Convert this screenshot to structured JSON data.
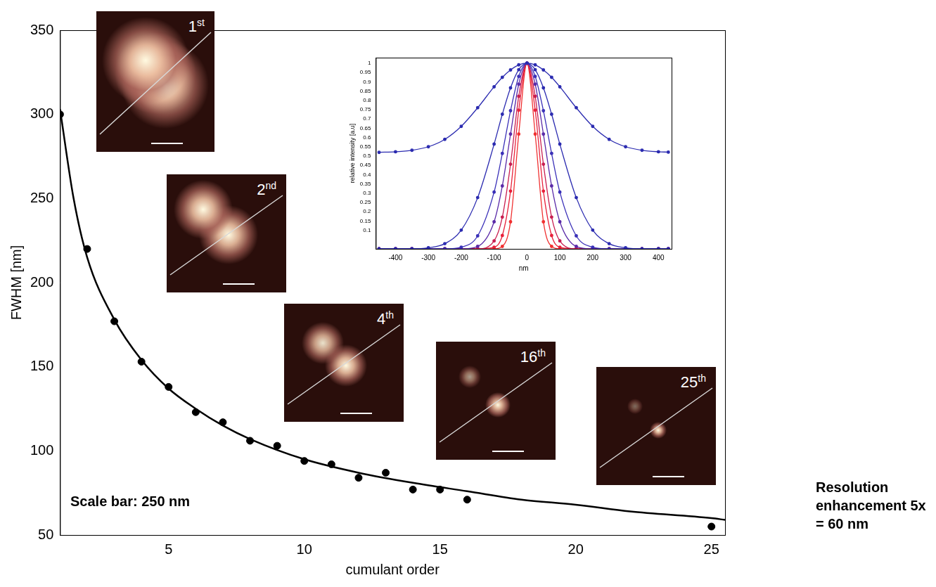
{
  "chart_data": [
    {
      "type": "scatter",
      "x_label": "cumulant order",
      "y_label": "FWHM [nm]",
      "xlim": [
        1,
        25.5
      ],
      "ylim": [
        50,
        350
      ],
      "xticks": [
        5,
        10,
        15,
        20,
        25
      ],
      "yticks": [
        50,
        100,
        150,
        200,
        250,
        300,
        350
      ],
      "grid": false,
      "series": [
        {
          "type": "scatter",
          "color": "#000000",
          "marker": "circle",
          "x": [
            1,
            2,
            3,
            4,
            5,
            6,
            7,
            8,
            9,
            10,
            11,
            12,
            13,
            14,
            15,
            16,
            25
          ],
          "values": [
            300,
            220,
            177,
            153,
            138,
            123,
            117,
            106,
            103,
            94,
            92,
            84,
            87,
            77,
            77,
            71,
            55
          ]
        },
        {
          "type": "line",
          "color": "#000000",
          "line_style": "solid",
          "x": [
            1,
            1.5,
            2,
            3,
            4,
            5,
            6,
            7,
            8,
            10,
            12,
            14,
            16,
            18,
            20,
            22,
            25,
            25.5
          ],
          "values": [
            303,
            250,
            215,
            178,
            154,
            137,
            125,
            115,
            107,
            95,
            87,
            81,
            76,
            71,
            68,
            64,
            60,
            59
          ]
        }
      ],
      "annotations": [
        "Scale bar: 250 nm",
        "Resolution enhancement 5x = 60 nm"
      ],
      "insets": [
        "1st",
        "2nd",
        "4th",
        "16th",
        "25th"
      ]
    },
    {
      "type": "line",
      "x_label": "nm",
      "y_label": "relative intensity [a.u]",
      "x": [
        -450,
        -400,
        -350,
        -300,
        -250,
        -200,
        -150,
        -100,
        -75,
        -50,
        -25,
        0,
        25,
        50,
        75,
        100,
        150,
        200,
        250,
        300,
        350,
        400,
        430
      ],
      "xlim": [
        -460,
        440
      ],
      "ylim": [
        0,
        1.03
      ],
      "xticks": [
        -400,
        -300,
        -200,
        -100,
        0,
        100,
        200,
        300,
        400
      ],
      "yticks": [
        0.1,
        0.15,
        0.2,
        0.25,
        0.3,
        0.35,
        0.4,
        0.45,
        0.5,
        0.55,
        0.6,
        0.65,
        0.7,
        0.75,
        0.8,
        0.85,
        0.9,
        0.95,
        1
      ],
      "grid": false,
      "series": [
        {
          "color": "#2b2bb0",
          "marker": "circle",
          "line_style": "solid",
          "values": [
            0.52,
            0.523,
            0.531,
            0.55,
            0.59,
            0.66,
            0.76,
            0.873,
            0.924,
            0.964,
            0.991,
            1,
            0.991,
            0.964,
            0.924,
            0.873,
            0.76,
            0.66,
            0.59,
            0.55,
            0.531,
            0.523,
            0.521
          ]
        },
        {
          "color": "#2b2bb0",
          "marker": "circle",
          "line_style": "solid",
          "values": [
            0,
            0,
            0,
            0.006,
            0.028,
            0.101,
            0.276,
            0.564,
            0.725,
            0.867,
            0.965,
            1,
            0.965,
            0.867,
            0.725,
            0.564,
            0.276,
            0.101,
            0.028,
            0.006,
            0,
            0,
            0
          ]
        },
        {
          "color": "#3a30b8",
          "marker": "circle",
          "line_style": "solid",
          "values": [
            0,
            0,
            0,
            0,
            0,
            0.009,
            0.07,
            0.306,
            0.514,
            0.744,
            0.929,
            1,
            0.929,
            0.744,
            0.514,
            0.306,
            0.07,
            0.009,
            0,
            0,
            0,
            0,
            0
          ]
        },
        {
          "color": "#5a2aa8",
          "marker": "circle",
          "line_style": "solid",
          "values": [
            0,
            0,
            0,
            0,
            0,
            0,
            0.013,
            0.146,
            0.339,
            0.618,
            0.887,
            1,
            0.887,
            0.618,
            0.339,
            0.146,
            0.013,
            0,
            0,
            0,
            0,
            0,
            0
          ]
        },
        {
          "color": "#c81e50",
          "marker": "circle",
          "line_style": "solid",
          "values": [
            0,
            0,
            0,
            0,
            0,
            0,
            0,
            0.043,
            0.171,
            0.456,
            0.822,
            1,
            0.822,
            0.456,
            0.171,
            0.043,
            0,
            0,
            0,
            0,
            0,
            0,
            0
          ]
        },
        {
          "color": "#e8203a",
          "marker": "circle",
          "line_style": "solid",
          "values": [
            0,
            0,
            0,
            0,
            0,
            0,
            0,
            0.009,
            0.072,
            0.311,
            0.747,
            1,
            0.747,
            0.311,
            0.072,
            0.009,
            0,
            0,
            0,
            0,
            0,
            0,
            0
          ]
        },
        {
          "color": "#f03030",
          "marker": "circle",
          "line_style": "solid",
          "values": [
            0,
            0,
            0,
            0,
            0,
            0,
            0,
            0,
            0.013,
            0.146,
            0.618,
            1,
            0.618,
            0.146,
            0.013,
            0,
            0,
            0,
            0,
            0,
            0,
            0,
            0
          ]
        }
      ]
    }
  ]
}
